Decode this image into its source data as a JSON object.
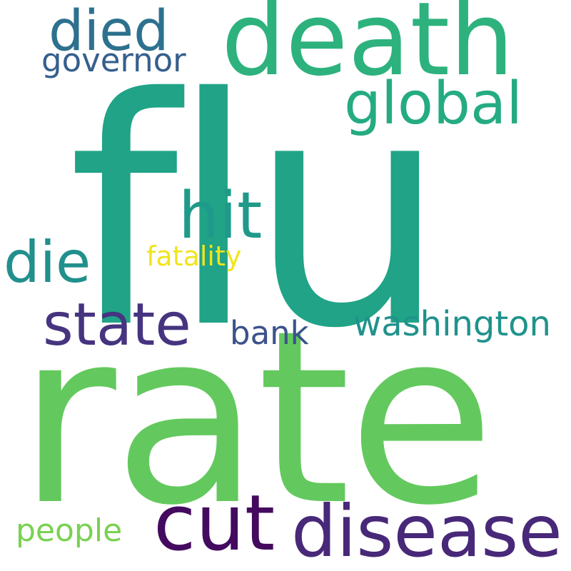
{
  "words": [
    {
      "id": "flu",
      "text": "flu",
      "color": "#20a386"
    },
    {
      "id": "rate",
      "text": "rate",
      "color": "#63c95e"
    },
    {
      "id": "death",
      "text": "death",
      "color": "#2db27d"
    },
    {
      "id": "died",
      "text": "died",
      "color": "#2d718e"
    },
    {
      "id": "governor",
      "text": "governor",
      "color": "#355f8d"
    },
    {
      "id": "global",
      "text": "global",
      "color": "#25ab82"
    },
    {
      "id": "hit",
      "text": "hit",
      "color": "#1f9a8a"
    },
    {
      "id": "die",
      "text": "die",
      "color": "#21908d"
    },
    {
      "id": "fatality",
      "text": "fatality",
      "color": "#f0e51c"
    },
    {
      "id": "state",
      "text": "state",
      "color": "#463480"
    },
    {
      "id": "bank",
      "text": "bank",
      "color": "#3b528b"
    },
    {
      "id": "washington",
      "text": "washington",
      "color": "#20928c"
    },
    {
      "id": "cut",
      "text": "cut",
      "color": "#440a5f"
    },
    {
      "id": "disease",
      "text": "disease",
      "color": "#482878"
    },
    {
      "id": "people",
      "text": "people",
      "color": "#7ad151"
    }
  ]
}
